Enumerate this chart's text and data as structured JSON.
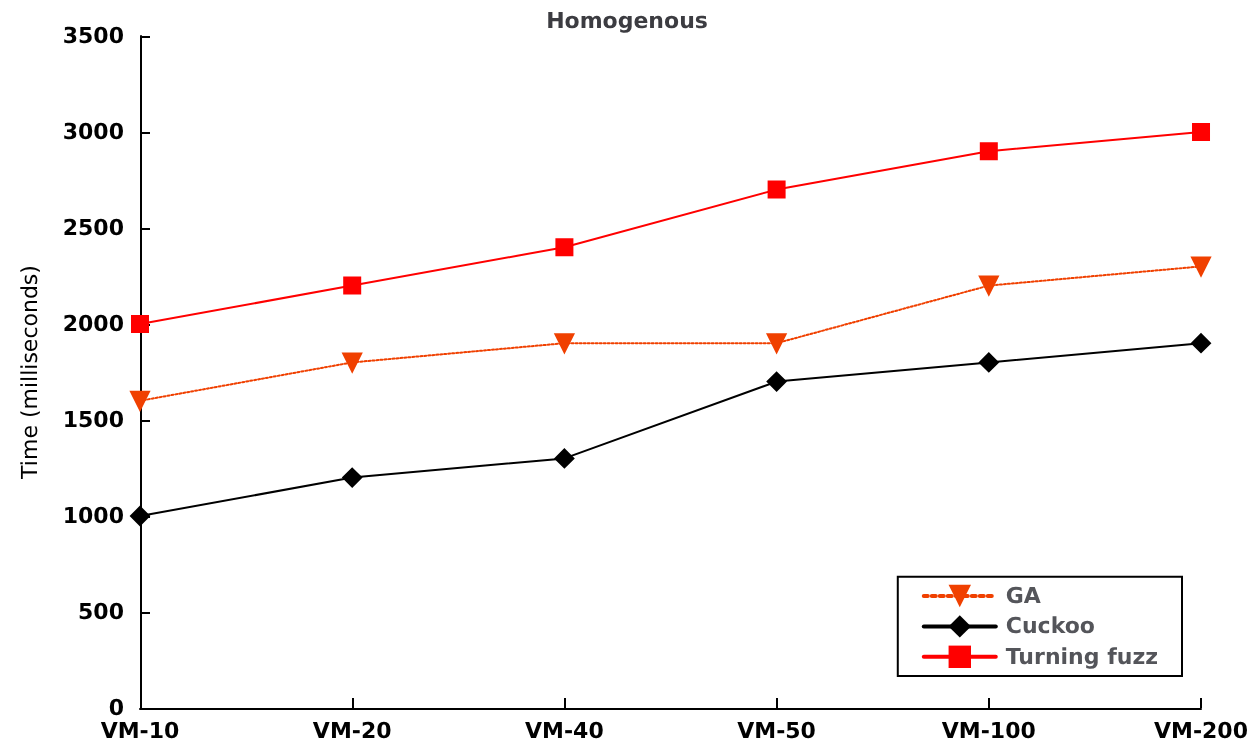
{
  "chart_data": {
    "type": "line",
    "title": "Homogenous",
    "ylabel": "Time (milliseconds)",
    "categories": [
      "VM-10",
      "VM-20",
      "VM-40",
      "VM-50",
      "VM-100",
      "VM-200"
    ],
    "series": [
      {
        "name": "GA",
        "color": "#f04000",
        "values": [
          1600,
          1800,
          1900,
          1900,
          2200,
          2300
        ],
        "marker": "triangle",
        "line_style": "dotted"
      },
      {
        "name": "Cuckoo",
        "color": "#000000",
        "values": [
          1000,
          1200,
          1300,
          1700,
          1800,
          1900
        ],
        "marker": "diamond",
        "line_style": "solid"
      },
      {
        "name": "Turning fuzz",
        "color": "#ff0000",
        "values": [
          2000,
          2200,
          2400,
          2700,
          2900,
          3000
        ],
        "marker": "square",
        "line_style": "solid"
      }
    ],
    "ylim": [
      0,
      3500
    ],
    "yticks": [
      0,
      500,
      1000,
      1500,
      2000,
      2500,
      3000,
      3500
    ],
    "grid": false,
    "legend": "bottom right"
  }
}
